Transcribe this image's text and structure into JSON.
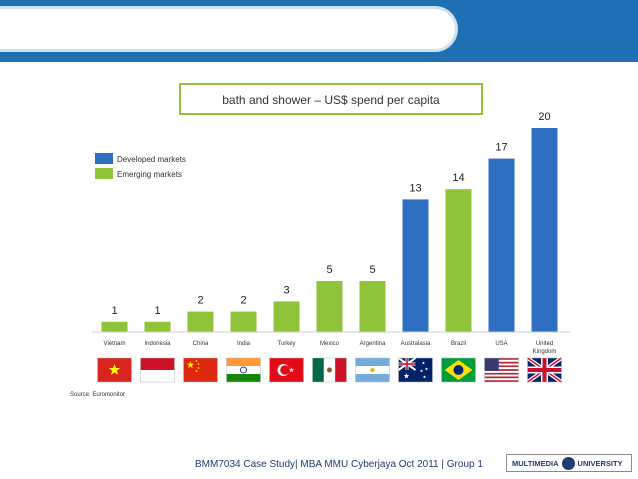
{
  "footer": "BMM7034 Case Study| MBA MMU Cyberjaya Oct 2011 | Group 1",
  "logo": {
    "left_text": "MULTIMEDIA",
    "right_text": "UNIVERSITY"
  },
  "flags": [
    {
      "country": "Vietnam",
      "icon": "vietnam-flag-icon"
    },
    {
      "country": "Indonesia",
      "icon": "indonesia-flag-icon"
    },
    {
      "country": "China",
      "icon": "china-flag-icon"
    },
    {
      "country": "India",
      "icon": "india-flag-icon"
    },
    {
      "country": "Turkey",
      "icon": "turkey-flag-icon"
    },
    {
      "country": "Mexico",
      "icon": "mexico-flag-icon"
    },
    {
      "country": "Argentina",
      "icon": "argentina-flag-icon"
    },
    {
      "country": "Australasia",
      "icon": "australasia-flag-icon"
    },
    {
      "country": "Brazil",
      "icon": "brazil-flag-icon"
    },
    {
      "country": "USA",
      "icon": "usa-flag-icon"
    },
    {
      "country": "United Kingdom",
      "icon": "uk-flag-icon"
    }
  ],
  "chart_data": {
    "type": "bar",
    "title": "bath and shower – US$ spend per capita",
    "categories": [
      "Vietnam",
      "Indonesia",
      "China",
      "India",
      "Turkey",
      "Mexico",
      "Argentina",
      "Australasia",
      "Brazil",
      "USA",
      "United Kingdom"
    ],
    "category_labels": [
      "Vietnam",
      "Indonesia",
      "China",
      "India",
      "Turkey",
      "Mexico",
      "Argentina",
      "Australasia",
      "Brazil",
      "USA",
      "United\nKingdom"
    ],
    "values": [
      1,
      1,
      2,
      2,
      3,
      5,
      5,
      13,
      14,
      17,
      20
    ],
    "groups": [
      "Emerging markets",
      "Emerging markets",
      "Emerging markets",
      "Emerging markets",
      "Emerging markets",
      "Emerging markets",
      "Emerging markets",
      "Developed markets",
      "Emerging markets",
      "Developed markets",
      "Developed markets"
    ],
    "legend": [
      {
        "name": "Developed markets",
        "color": "#2e6fc1"
      },
      {
        "name": "Emerging markets",
        "color": "#8fc33a"
      }
    ],
    "legend_position": "top-left",
    "ylim": [
      0,
      20
    ],
    "source": "Source: Euromonitor",
    "grid": false
  }
}
